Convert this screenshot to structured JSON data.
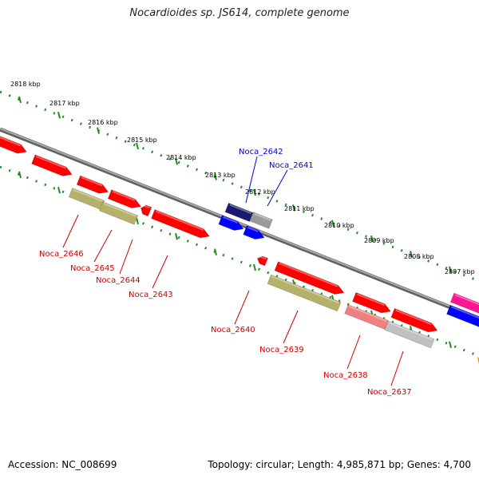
{
  "title": "Nocardioides sp. JS614, complete genome",
  "footer": {
    "accession": "Accession: NC_008699",
    "stats": "Topology: circular; Length: 4,985,871 bp; Genes: 4,700"
  },
  "colors": {
    "backbone": "#808080",
    "ruler": "#228b22",
    "label_red": "#cc0000",
    "label_blue": "#0000cc",
    "cds_red": "#ff0000",
    "cds_olive": "#b5b06a",
    "cds_blue": "#0000ff",
    "cds_navy": "#1a1a6e",
    "cds_gray": "#9a9a9a",
    "cds_pink": "#f08080",
    "cds_silver": "#c0c0c0",
    "cds_magenta": "#ff1493",
    "cds_orange": "#ff8c00"
  },
  "ticks": [
    "2818 kbp",
    "2817 kbp",
    "2816 kbp",
    "2815 kbp",
    "2814 kbp",
    "2813 kbp",
    "2812 kbp",
    "2811 kbp",
    "2810 kbp",
    "2809 kbp",
    "2808 kbp",
    "2807 kbp"
  ],
  "genes": [
    {
      "label": "Noca_2646",
      "color": "label_red"
    },
    {
      "label": "Noca_2645",
      "color": "label_red"
    },
    {
      "label": "Noca_2644",
      "color": "label_red"
    },
    {
      "label": "Noca_2643",
      "color": "label_red"
    },
    {
      "label": "Noca_2642",
      "color": "label_blue"
    },
    {
      "label": "Noca_2641",
      "color": "label_blue"
    },
    {
      "label": "Noca_2640",
      "color": "label_red"
    },
    {
      "label": "Noca_2639",
      "color": "label_red"
    },
    {
      "label": "Noca_2638",
      "color": "label_red"
    },
    {
      "label": "Noca_2637",
      "color": "label_red"
    }
  ]
}
